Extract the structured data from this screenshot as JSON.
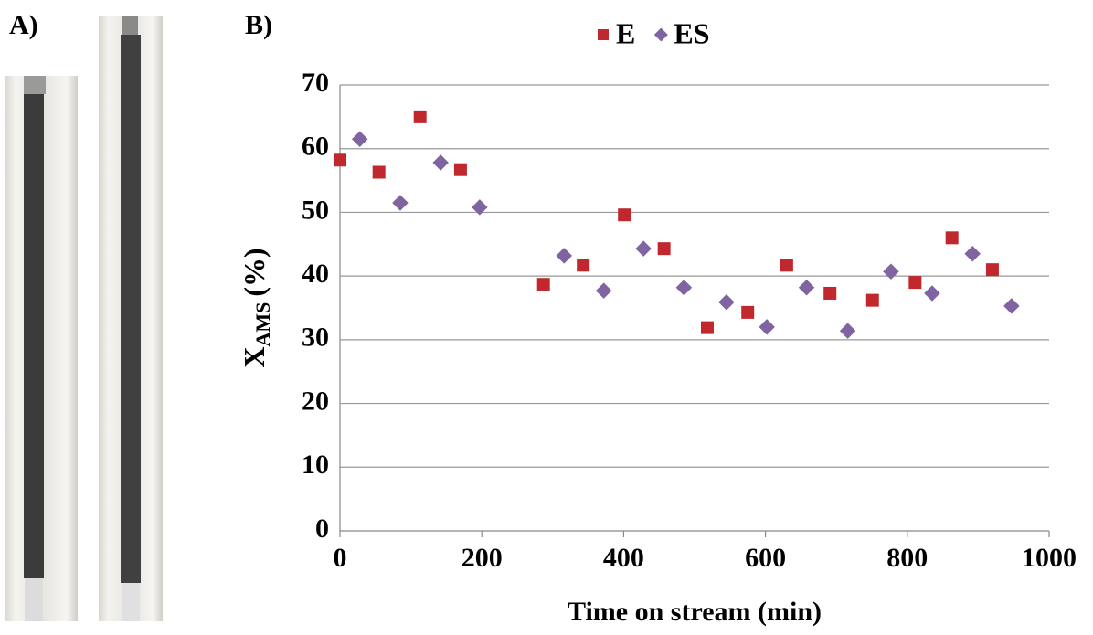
{
  "panel_a": {
    "label": "A)"
  },
  "chart_data": {
    "type": "scatter",
    "panel_label": "B)",
    "x_label": "Time on stream (min)",
    "y_label": {
      "main": "X",
      "sub": "AMS",
      "unit": "(%)"
    },
    "xlim": [
      0,
      1000
    ],
    "xticks": [
      0,
      200,
      400,
      600,
      800,
      1000
    ],
    "ylim": [
      0,
      70
    ],
    "yticks": [
      0,
      10,
      20,
      30,
      40,
      50,
      60,
      70
    ],
    "grid": true,
    "legend": "top",
    "series": [
      {
        "name": "E",
        "color": "#c0282d",
        "marker": "square",
        "x": [
          0,
          55,
          113,
          170,
          287,
          343,
          401,
          457,
          518,
          575,
          630,
          691,
          751,
          811,
          863,
          920
        ],
        "values": [
          58.2,
          56.3,
          65,
          56.7,
          38.7,
          41.7,
          49.6,
          44.3,
          31.9,
          34.3,
          41.7,
          37.3,
          36.2,
          39,
          46,
          41
        ]
      },
      {
        "name": "ES",
        "color": "#8064a2",
        "marker": "diamond",
        "x": [
          28,
          85,
          142,
          197,
          316,
          372,
          428,
          485,
          545,
          602,
          658,
          716,
          777,
          835,
          892,
          947
        ],
        "values": [
          61.5,
          51.5,
          57.8,
          50.8,
          43.2,
          37.7,
          44.3,
          38.2,
          35.9,
          32,
          38.2,
          31.4,
          40.7,
          37.3,
          43.5,
          35.3
        ]
      }
    ]
  }
}
